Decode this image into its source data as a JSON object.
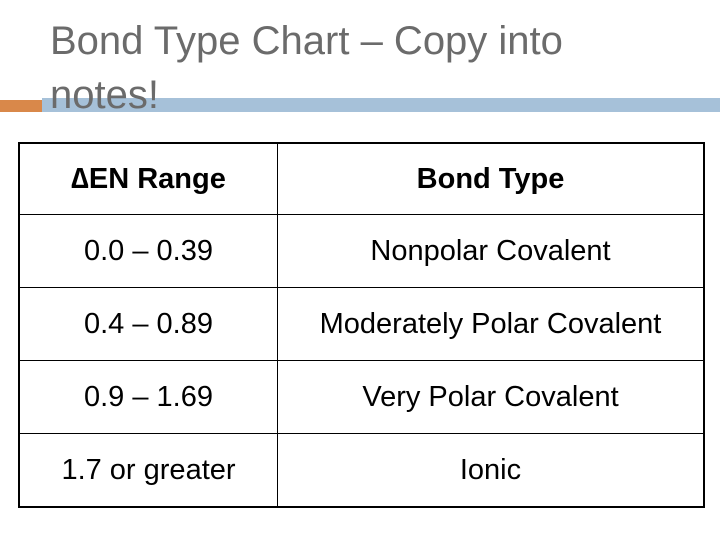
{
  "header": {
    "title": "Bond Type Chart – Copy into notes!"
  },
  "table": {
    "header": [
      "∆EN Range",
      "Bond Type"
    ],
    "rows": [
      [
        "0.0 – 0.39",
        "Nonpolar Covalent"
      ],
      [
        "0.4 – 0.89",
        "Moderately Polar Covalent"
      ],
      [
        "0.9 – 1.69",
        "Very Polar Covalent"
      ],
      [
        "1.7 or greater",
        "Ionic"
      ]
    ]
  }
}
